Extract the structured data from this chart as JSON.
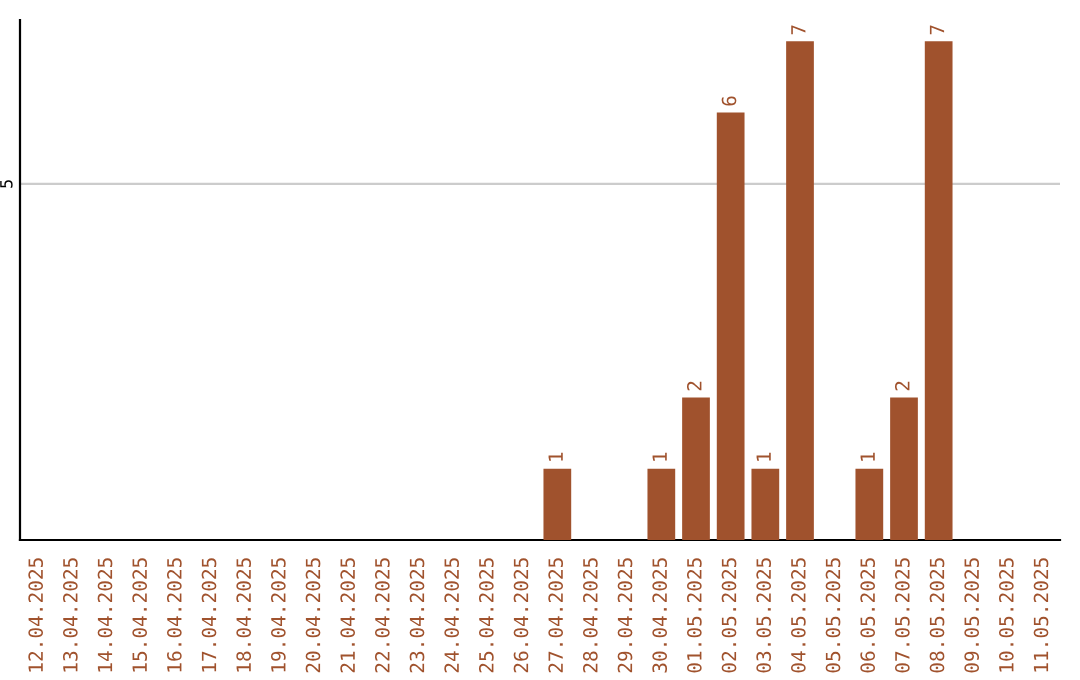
{
  "chart_data": {
    "type": "bar",
    "categories": [
      "12.04.2025",
      "13.04.2025",
      "14.04.2025",
      "15.04.2025",
      "16.04.2025",
      "17.04.2025",
      "18.04.2025",
      "19.04.2025",
      "20.04.2025",
      "21.04.2025",
      "22.04.2025",
      "23.04.2025",
      "24.04.2025",
      "25.04.2025",
      "26.04.2025",
      "27.04.2025",
      "28.04.2025",
      "29.04.2025",
      "30.04.2025",
      "01.05.2025",
      "02.05.2025",
      "03.05.2025",
      "04.05.2025",
      "05.05.2025",
      "06.05.2025",
      "07.05.2025",
      "08.05.2025",
      "09.05.2025",
      "10.05.2025",
      "11.05.2025"
    ],
    "values": [
      null,
      null,
      null,
      null,
      null,
      null,
      null,
      null,
      null,
      null,
      null,
      null,
      null,
      null,
      null,
      1,
      null,
      null,
      1,
      2,
      6,
      1,
      7,
      null,
      1,
      2,
      7,
      null,
      null,
      null
    ],
    "value_labels": [
      null,
      null,
      null,
      null,
      null,
      null,
      null,
      null,
      null,
      null,
      null,
      null,
      null,
      null,
      null,
      "1",
      null,
      null,
      "1",
      "2",
      "6",
      "1",
      "7",
      null,
      "1",
      "2",
      "7",
      null,
      null,
      null
    ],
    "color": "#a0522d",
    "ylim": [
      0,
      7.3
    ],
    "ref_lines": [
      {
        "axis": "y",
        "value": 5,
        "label": "5",
        "color": "#cccccc"
      }
    ]
  }
}
